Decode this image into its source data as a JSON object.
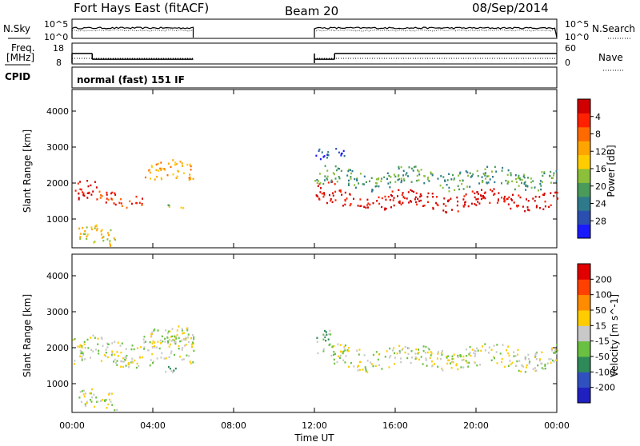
{
  "header": {
    "radar": "Fort Hays East (fitACF)",
    "beam": "Beam 20",
    "date": "08/Sep/2014"
  },
  "params": {
    "nsky_label": "N.Sky",
    "nsearch_label": "N.Search",
    "freq_label_1": "Freq.",
    "freq_label_2": "[MHz]",
    "nave_label": "Nave",
    "cpid_label": "CPID",
    "cpid_text": "normal (fast) 151 IF",
    "noise_ticks_left": [
      "10^5",
      "10^0"
    ],
    "noise_ticks_right": [
      "10^5",
      "10^0"
    ],
    "freq_ticks": [
      "18",
      "8"
    ],
    "nave_ticks": [
      "60",
      "0"
    ],
    "operating_segments_ut": [
      [
        0,
        6
      ],
      [
        12,
        24
      ]
    ],
    "freq_mhz": [
      {
        "from": 0,
        "to": 1,
        "value": 13.5
      },
      {
        "from": 1,
        "to": 6,
        "value": 10.2
      },
      {
        "from": 12,
        "to": 13,
        "value": 10.2
      },
      {
        "from": 13,
        "to": 24,
        "value": 13.5
      }
    ]
  },
  "chart_data": [
    {
      "type": "heatmap",
      "name": "power-panel",
      "ylabel": "Slant Range [km]",
      "yticks": [
        "1000",
        "2000",
        "3000",
        "4000"
      ],
      "ylim": [
        200,
        4600
      ],
      "xlim": [
        0,
        24
      ],
      "colorbar_label": "Power [dB]",
      "colorbar_ticks": [
        "4",
        "8",
        "12",
        "16",
        "20",
        "24",
        "28"
      ],
      "colorbar_colors": [
        "#1a1aff",
        "#2a4fb0",
        "#2f7a8a",
        "#4a9a5a",
        "#8cbf3a",
        "#ffcc00",
        "#ffa500",
        "#ff6a00",
        "#ff2000",
        "#d00000"
      ],
      "scatter_bands": [
        {
          "from": 0,
          "to": 1.2,
          "center": 1750,
          "width": 500,
          "level": 9
        },
        {
          "from": 1.2,
          "to": 3.5,
          "center": 1600,
          "width": 350,
          "level": 8
        },
        {
          "from": 3.5,
          "to": 6,
          "center": 2300,
          "width": 500,
          "level": 6
        },
        {
          "from": 4.6,
          "to": 5.5,
          "center": 1300,
          "width": 150,
          "level": 4
        },
        {
          "from": 0.3,
          "to": 2.2,
          "center": 500,
          "width": 500,
          "level": 5
        },
        {
          "from": 12,
          "to": 13,
          "center": 1650,
          "width": 600,
          "level": 9
        },
        {
          "from": 13,
          "to": 24,
          "center": 1550,
          "width": 450,
          "level": 9
        },
        {
          "from": 12,
          "to": 24,
          "center": 2150,
          "width": 500,
          "level": 3
        },
        {
          "from": 12,
          "to": 13.5,
          "center": 2750,
          "width": 300,
          "level": 1
        }
      ]
    },
    {
      "type": "heatmap",
      "name": "velocity-panel",
      "ylabel": "Slant Range [km]",
      "yticks": [
        "1000",
        "2000",
        "3000",
        "4000"
      ],
      "ylim": [
        200,
        4600
      ],
      "xlim": [
        0,
        24
      ],
      "xticks": [
        "00:00",
        "04:00",
        "08:00",
        "12:00",
        "16:00",
        "20:00",
        "00:00"
      ],
      "xlabel": "Time UT",
      "colorbar_label": "Velocity [m s^-1]",
      "colorbar_ticks": [
        "200",
        "100",
        "50",
        "15",
        "-15",
        "-50",
        "-100",
        "-200"
      ],
      "colorbar_colors": [
        "#2020c0",
        "#3050c0",
        "#2f8a5a",
        "#6ac040",
        "#c8c8c8",
        "#ffcc00",
        "#ff8c00",
        "#ff4000",
        "#e00000"
      ],
      "scatter_bands": [
        {
          "from": 0,
          "to": 6,
          "center": 1900,
          "width": 700,
          "level": 4
        },
        {
          "from": 3.5,
          "to": 6,
          "center": 2300,
          "width": 500,
          "level": 4
        },
        {
          "from": 4.6,
          "to": 5.5,
          "center": 1300,
          "width": 200,
          "level": 3
        },
        {
          "from": 0.3,
          "to": 2.2,
          "center": 500,
          "width": 500,
          "level": 4
        },
        {
          "from": 12,
          "to": 12.8,
          "center": 2100,
          "width": 600,
          "level": 3
        },
        {
          "from": 12.8,
          "to": 24,
          "center": 1750,
          "width": 600,
          "level": 4
        }
      ]
    }
  ]
}
